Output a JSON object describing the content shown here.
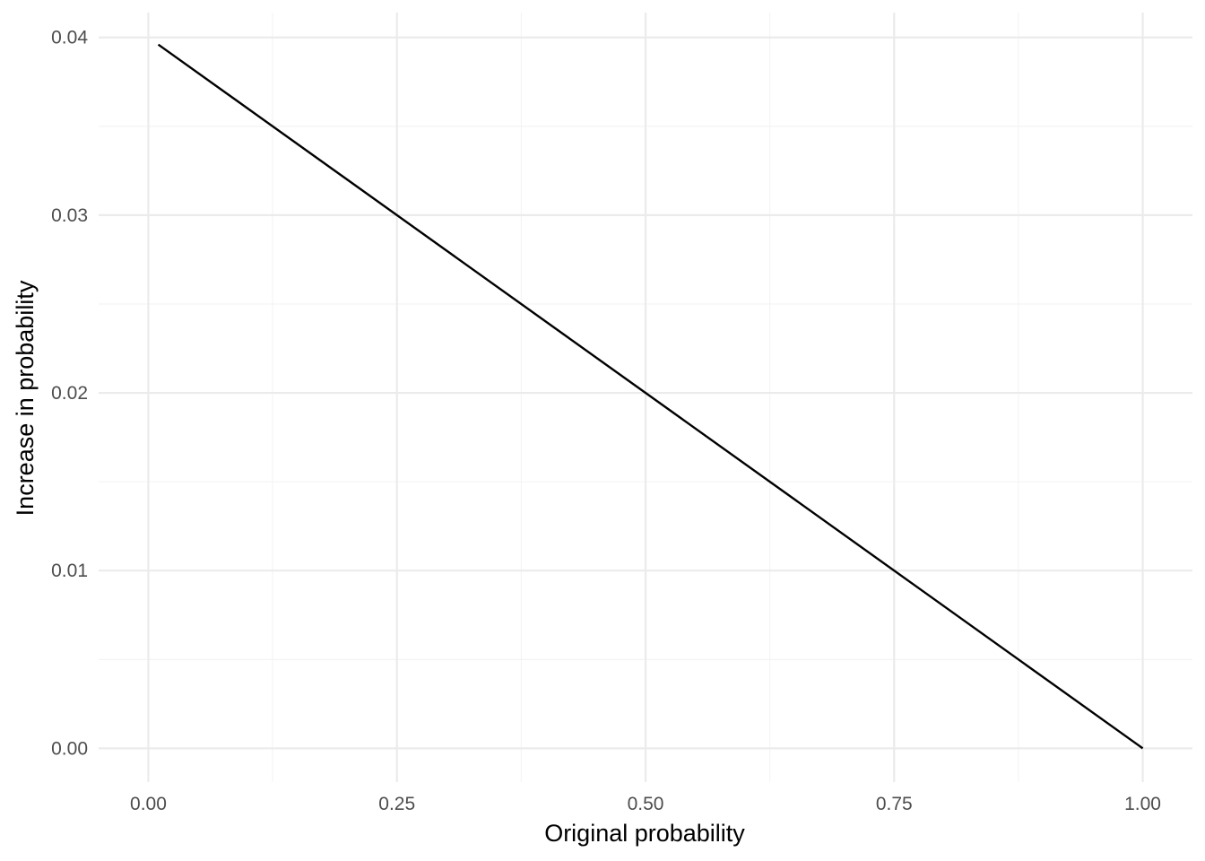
{
  "chart_data": {
    "type": "line",
    "title": "",
    "xlabel": "Original probability",
    "ylabel": "Increase in probability",
    "xlim": [
      -0.05,
      1.05
    ],
    "ylim": [
      -0.0019,
      0.0414
    ],
    "x_ticks": [
      0.0,
      0.25,
      0.5,
      0.75,
      1.0
    ],
    "x_tick_labels": [
      "0.00",
      "0.25",
      "0.50",
      "0.75",
      "1.00"
    ],
    "y_ticks": [
      0.0,
      0.01,
      0.02,
      0.03,
      0.04
    ],
    "y_tick_labels": [
      "0.00",
      "0.01",
      "0.02",
      "0.03",
      "0.04"
    ],
    "x_minor_ticks": [
      0.125,
      0.375,
      0.625,
      0.875
    ],
    "y_minor_ticks": [
      0.005,
      0.015,
      0.025,
      0.035
    ],
    "grid": true,
    "legend": "none",
    "series": [
      {
        "color": "#000000",
        "x": [
          0.01,
          1.0
        ],
        "y": [
          0.0396,
          0.0
        ]
      }
    ]
  }
}
